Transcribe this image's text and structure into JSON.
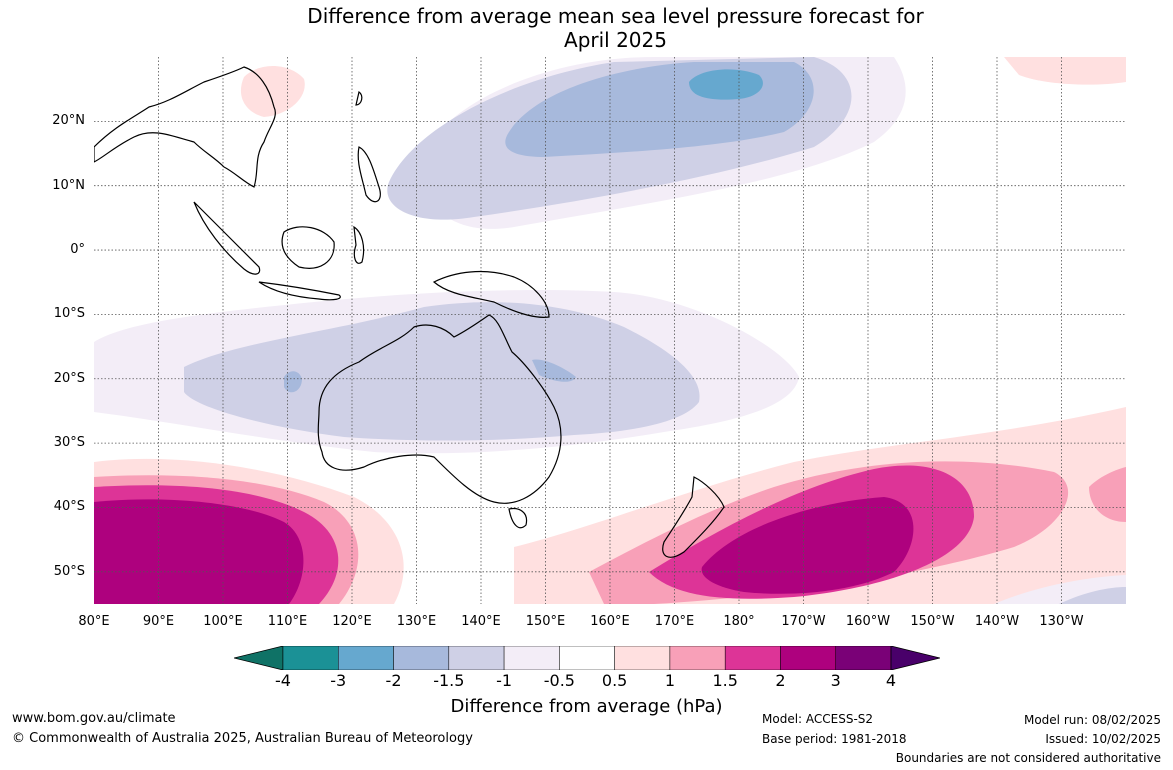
{
  "title": {
    "line1": "Difference from average mean sea level pressure forecast for",
    "line2": "April 2025"
  },
  "map": {
    "projection": "equirectangular",
    "lon_range": [
      80,
      240
    ],
    "lat_range": [
      -55,
      30
    ],
    "lat_ticks": [
      {
        "lat": 20,
        "label": "20°N"
      },
      {
        "lat": 10,
        "label": "10°N"
      },
      {
        "lat": 0,
        "label": "0°"
      },
      {
        "lat": -10,
        "label": "10°S"
      },
      {
        "lat": -20,
        "label": "20°S"
      },
      {
        "lat": -30,
        "label": "30°S"
      },
      {
        "lat": -40,
        "label": "40°S"
      },
      {
        "lat": -50,
        "label": "50°S"
      }
    ],
    "lon_ticks": [
      {
        "lon": 80,
        "label": "80°E"
      },
      {
        "lon": 90,
        "label": "90°E"
      },
      {
        "lon": 100,
        "label": "100°E"
      },
      {
        "lon": 110,
        "label": "110°E"
      },
      {
        "lon": 120,
        "label": "120°E"
      },
      {
        "lon": 130,
        "label": "130°E"
      },
      {
        "lon": 140,
        "label": "140°E"
      },
      {
        "lon": 150,
        "label": "150°E"
      },
      {
        "lon": 160,
        "label": "160°E"
      },
      {
        "lon": 170,
        "label": "170°E"
      },
      {
        "lon": 180,
        "label": "180°"
      },
      {
        "lon": 190,
        "label": "170°W"
      },
      {
        "lon": 200,
        "label": "160°W"
      },
      {
        "lon": 210,
        "label": "150°W"
      },
      {
        "lon": 220,
        "label": "140°W"
      },
      {
        "lon": 230,
        "label": "130°W"
      }
    ],
    "grid": true
  },
  "colorbar": {
    "labels": [
      "-4",
      "-3",
      "-2",
      "-1.5",
      "-1",
      "-0.5",
      "0.5",
      "1",
      "1.5",
      "2",
      "3",
      "4"
    ],
    "colors": [
      "#0f7266",
      "#1b9196",
      "#66a8cf",
      "#a7b9dc",
      "#cfd0e6",
      "#f3edf7",
      "#ffffff",
      "#ffe0e0",
      "#f8a0b8",
      "#dd3497",
      "#ae017e",
      "#7a0177",
      "#49006a"
    ],
    "label": "Difference from average (hPa)"
  },
  "footer": {
    "url": "www.bom.gov.au/climate",
    "copyright": "© Commonwealth of Australia 2025, Australian Bureau of Meteorology",
    "model": "Model: ACCESS-S2",
    "base_period": "Base period: 1981-2018",
    "model_run": "Model run: 08/02/2025",
    "issued": "Issued: 10/02/2025",
    "disclaimer": "Boundaries are not considered authoritative"
  }
}
